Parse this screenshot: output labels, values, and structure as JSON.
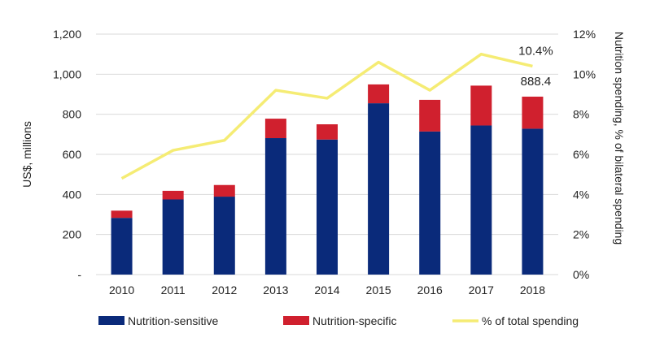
{
  "chart_data": {
    "type": "bar",
    "stacked": true,
    "categories": [
      "2010",
      "2011",
      "2012",
      "2013",
      "2014",
      "2015",
      "2016",
      "2017",
      "2018"
    ],
    "series": [
      {
        "name": "Nutrition-sensitive",
        "type": "bar",
        "axis": "left",
        "color": "#0a2a7a",
        "values": [
          283,
          375,
          389,
          681,
          674,
          855,
          714,
          744,
          728
        ]
      },
      {
        "name": "Nutrition-specific",
        "type": "bar",
        "axis": "left",
        "color": "#d0202e",
        "values": [
          36,
          43,
          58,
          97,
          76,
          94,
          158,
          199,
          160
        ]
      },
      {
        "name": "% of total spending",
        "type": "line",
        "axis": "right",
        "color": "#f5ec74",
        "values": [
          4.8,
          6.2,
          6.7,
          9.2,
          8.8,
          10.6,
          9.2,
          11.0,
          10.4
        ]
      }
    ],
    "ylabel": "US$, millions",
    "y2label": "Nutrition spending, % of bilateral spending",
    "ylim": [
      0,
      1200
    ],
    "y2lim": [
      0,
      12
    ],
    "yticks": [
      "-",
      "200",
      "400",
      "600",
      "800",
      "1,000",
      "1,200"
    ],
    "y2ticks": [
      "0%",
      "2%",
      "4%",
      "6%",
      "8%",
      "10%",
      "12%"
    ],
    "grid": true,
    "legend": "bottom",
    "annotations": [
      {
        "text": "10.4%",
        "category": "2018",
        "series": "% of total spending"
      },
      {
        "text": "888.4",
        "category": "2018",
        "series": "total"
      }
    ]
  }
}
